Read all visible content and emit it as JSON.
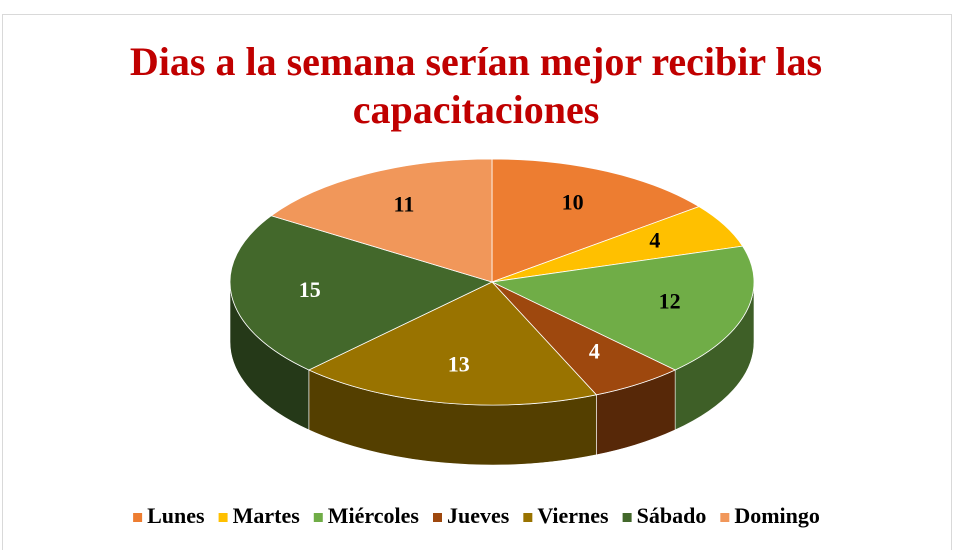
{
  "chart_data": {
    "type": "pie3d",
    "title": "Dias a la semana serían mejor recibir las capacitaciones",
    "categories": [
      "Lunes",
      "Martes",
      "Miércoles",
      "Jueves",
      "Viernes",
      "Sábado",
      "Domingo"
    ],
    "values": [
      10,
      4,
      12,
      4,
      13,
      15,
      11
    ],
    "colors": [
      "#ED7D31",
      "#FFC000",
      "#70AD47",
      "#9E480E",
      "#997300",
      "#43682B",
      "#F1975A"
    ],
    "label_colors": [
      "#000000",
      "#000000",
      "#000000",
      "#ffffff",
      "#ffffff",
      "#ffffff",
      "#000000"
    ],
    "legend": "bottom"
  }
}
